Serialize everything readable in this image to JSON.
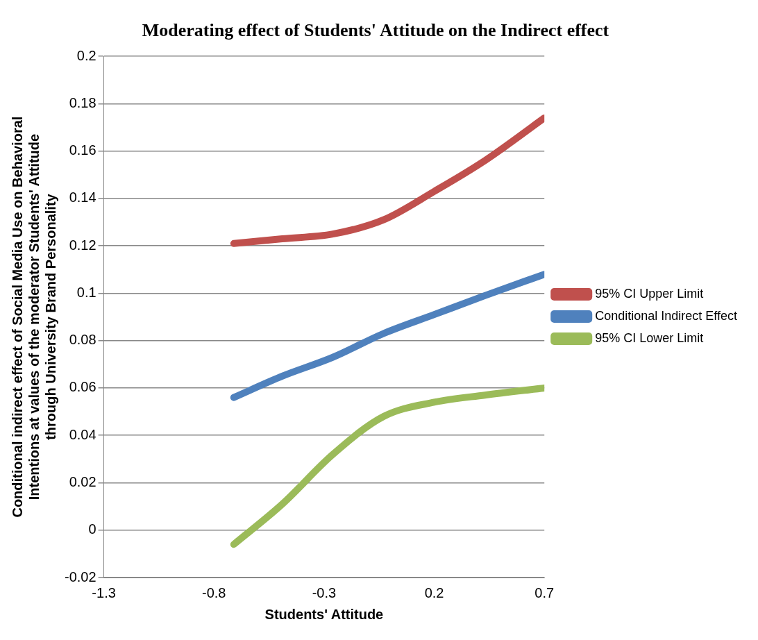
{
  "chart_data": {
    "type": "line",
    "title": "Moderating effect of Students' Attitude on the Indirect effect",
    "xlabel": "Students' Attitude",
    "ylabel": "Conditional indirect effect of Social Media Use on Behavioral Intentions at values of the moderator Students' Attitude through University Brand Personality",
    "x": [
      -0.71,
      -0.49,
      -0.26,
      -0.03,
      0.2,
      0.43,
      0.7
    ],
    "series": [
      {
        "name": "95% CI Upper Limit",
        "color": "#c0504d",
        "values": [
          0.121,
          0.123,
          0.125,
          0.131,
          0.143,
          0.156,
          0.174
        ]
      },
      {
        "name": "Conditional Indirect Effect",
        "color": "#4f81bd",
        "values": [
          0.056,
          0.065,
          0.073,
          0.083,
          0.091,
          0.099,
          0.108
        ]
      },
      {
        "name": "95% CI Lower Limit",
        "color": "#9bbb59",
        "values": [
          -0.006,
          0.011,
          0.032,
          0.048,
          0.054,
          0.057,
          0.06
        ]
      }
    ],
    "xlim": [
      -1.3,
      0.7
    ],
    "xticks": [
      -1.3,
      -0.8,
      -0.3,
      0.2,
      0.7
    ],
    "ylim": [
      -0.02,
      0.2
    ],
    "yticks": [
      -0.02,
      0,
      0.02,
      0.04,
      0.06,
      0.08,
      0.1,
      0.12,
      0.14,
      0.16,
      0.18,
      0.2
    ],
    "grid": "y",
    "legend": "right",
    "marker": "none",
    "line_style": "solid"
  }
}
